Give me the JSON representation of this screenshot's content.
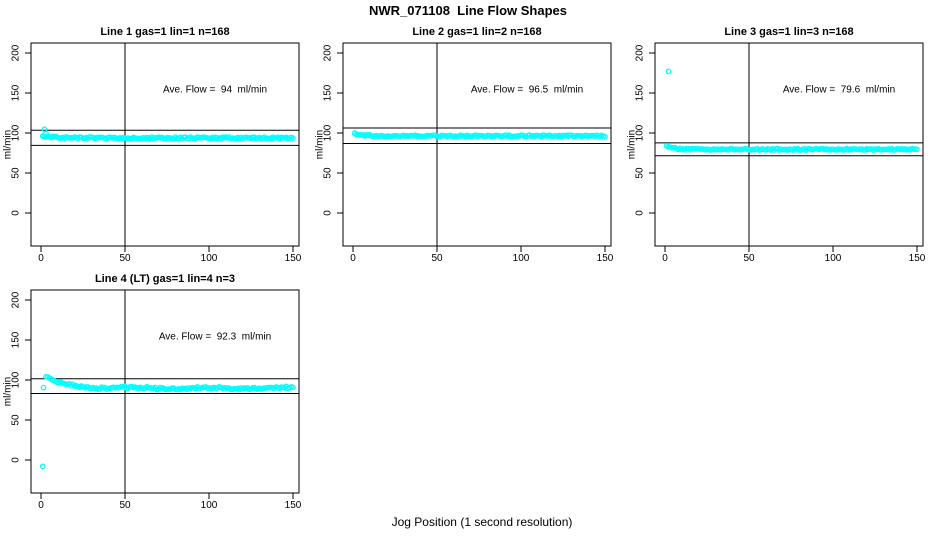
{
  "figure": {
    "title": "NWR_071108  Line Flow Shapes",
    "xlabel": "Jog Position (1 second resolution)",
    "background_color": "#FFFFFF",
    "axis_color": "#000000",
    "point_color": "#00FFFF"
  },
  "chart_data": [
    {
      "type": "scatter",
      "title": "Line 1 gas=1 lin=1 n=168",
      "annotation": "Ave. Flow =  94  ml/min",
      "ave_flow_ml_min": 94,
      "n": 168,
      "ylabel": "ml/min",
      "x_ticks": [
        0,
        50,
        100,
        150
      ],
      "y_ticks": [
        0,
        50,
        100,
        150,
        200
      ],
      "xlim": [
        -6,
        156
      ],
      "ylim": [
        -41,
        212
      ],
      "grid": "off",
      "vline_x": 50,
      "hlines_y": [
        103.4,
        84.6
      ],
      "outlier_points": [
        [
          2,
          104.5
        ],
        [
          3,
          99.5
        ]
      ],
      "series": {
        "x_start": 1,
        "x_end": 150,
        "steady_value": 93.8,
        "start_excess": 2.8,
        "decay_tau": 7,
        "wave_amp": 0,
        "wave_div": 7,
        "noise_amp": 1.1,
        "seed": 11
      }
    },
    {
      "type": "scatter",
      "title": "Line 2 gas=1 lin=2 n=168",
      "annotation": "Ave. Flow =  96.5  ml/min",
      "ave_flow_ml_min": 96.5,
      "n": 168,
      "ylabel": "ml/min",
      "x_ticks": [
        0,
        50,
        100,
        150
      ],
      "y_ticks": [
        0,
        50,
        100,
        150,
        200
      ],
      "xlim": [
        -6,
        156
      ],
      "ylim": [
        -41,
        212
      ],
      "grid": "off",
      "vline_x": 50,
      "hlines_y": [
        106.2,
        86.9
      ],
      "outlier_points": [
        [
          1,
          100
        ]
      ],
      "series": {
        "x_start": 1,
        "x_end": 150,
        "steady_value": 96.3,
        "start_excess": 3.2,
        "decay_tau": 4,
        "wave_amp": 0,
        "wave_div": 7,
        "noise_amp": 1.0,
        "seed": 22
      }
    },
    {
      "type": "scatter",
      "title": "Line 3 gas=1 lin=3 n=168",
      "annotation": "Ave. Flow =  79.6  ml/min",
      "ave_flow_ml_min": 79.6,
      "n": 168,
      "ylabel": "ml/min",
      "x_ticks": [
        0,
        50,
        100,
        150
      ],
      "y_ticks": [
        0,
        50,
        100,
        150,
        200
      ],
      "xlim": [
        -6,
        156
      ],
      "ylim": [
        -41,
        212
      ],
      "grid": "off",
      "vline_x": 50,
      "hlines_y": [
        87.6,
        71.6
      ],
      "outlier_points": [
        [
          2,
          177
        ]
      ],
      "series": {
        "x_start": 1,
        "x_end": 150,
        "steady_value": 79.5,
        "start_excess": 4.8,
        "decay_tau": 4,
        "wave_amp": 0,
        "wave_div": 7,
        "noise_amp": 0.9,
        "seed": 33
      }
    },
    {
      "type": "scatter",
      "title": "Line 4 (LT) gas=1 lin=4 n=3",
      "annotation": "Ave. Flow =  92.3  ml/min",
      "ave_flow_ml_min": 92.3,
      "n": 3,
      "ylabel": "ml/min",
      "x_ticks": [
        0,
        50,
        100,
        150
      ],
      "y_ticks": [
        0,
        50,
        100,
        150,
        200
      ],
      "xlim": [
        -6,
        156
      ],
      "ylim": [
        -41,
        212
      ],
      "grid": "off",
      "vline_x": 50,
      "hlines_y": [
        101.5,
        83.1
      ],
      "outlier_points": [
        [
          1,
          -8
        ],
        [
          1.5,
          90.5
        ]
      ],
      "series": {
        "x_start": 3,
        "x_end": 150,
        "steady_value": 89.8,
        "start_excess": 13.5,
        "decay_tau": 11,
        "wave_amp": 0.9,
        "wave_div": 7,
        "noise_amp": 1.4,
        "seed": 44
      }
    }
  ]
}
